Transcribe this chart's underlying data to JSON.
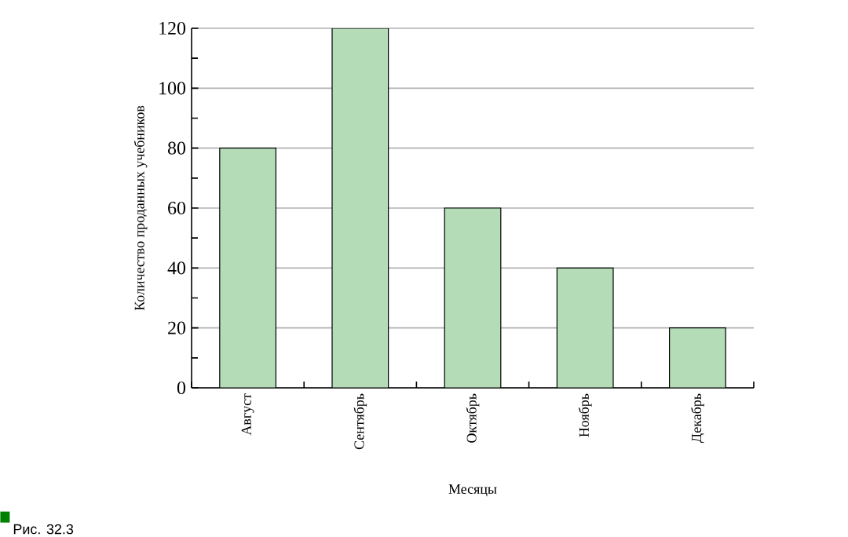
{
  "chart_data": {
    "type": "bar",
    "xlabel": "Месяцы",
    "ylabel": "Количество проданных учебников",
    "categories": [
      "Август",
      "Сентябрь",
      "Октябрь",
      "Ноябрь",
      "Декабрь"
    ],
    "values": [
      80,
      120,
      60,
      40,
      20
    ],
    "color": "#b3dcb7",
    "ylim": [
      0,
      120
    ],
    "yticks": [
      0,
      20,
      40,
      60,
      80,
      100,
      120
    ],
    "grid": "y",
    "annotations": [
      "Рис. 32.3"
    ]
  }
}
